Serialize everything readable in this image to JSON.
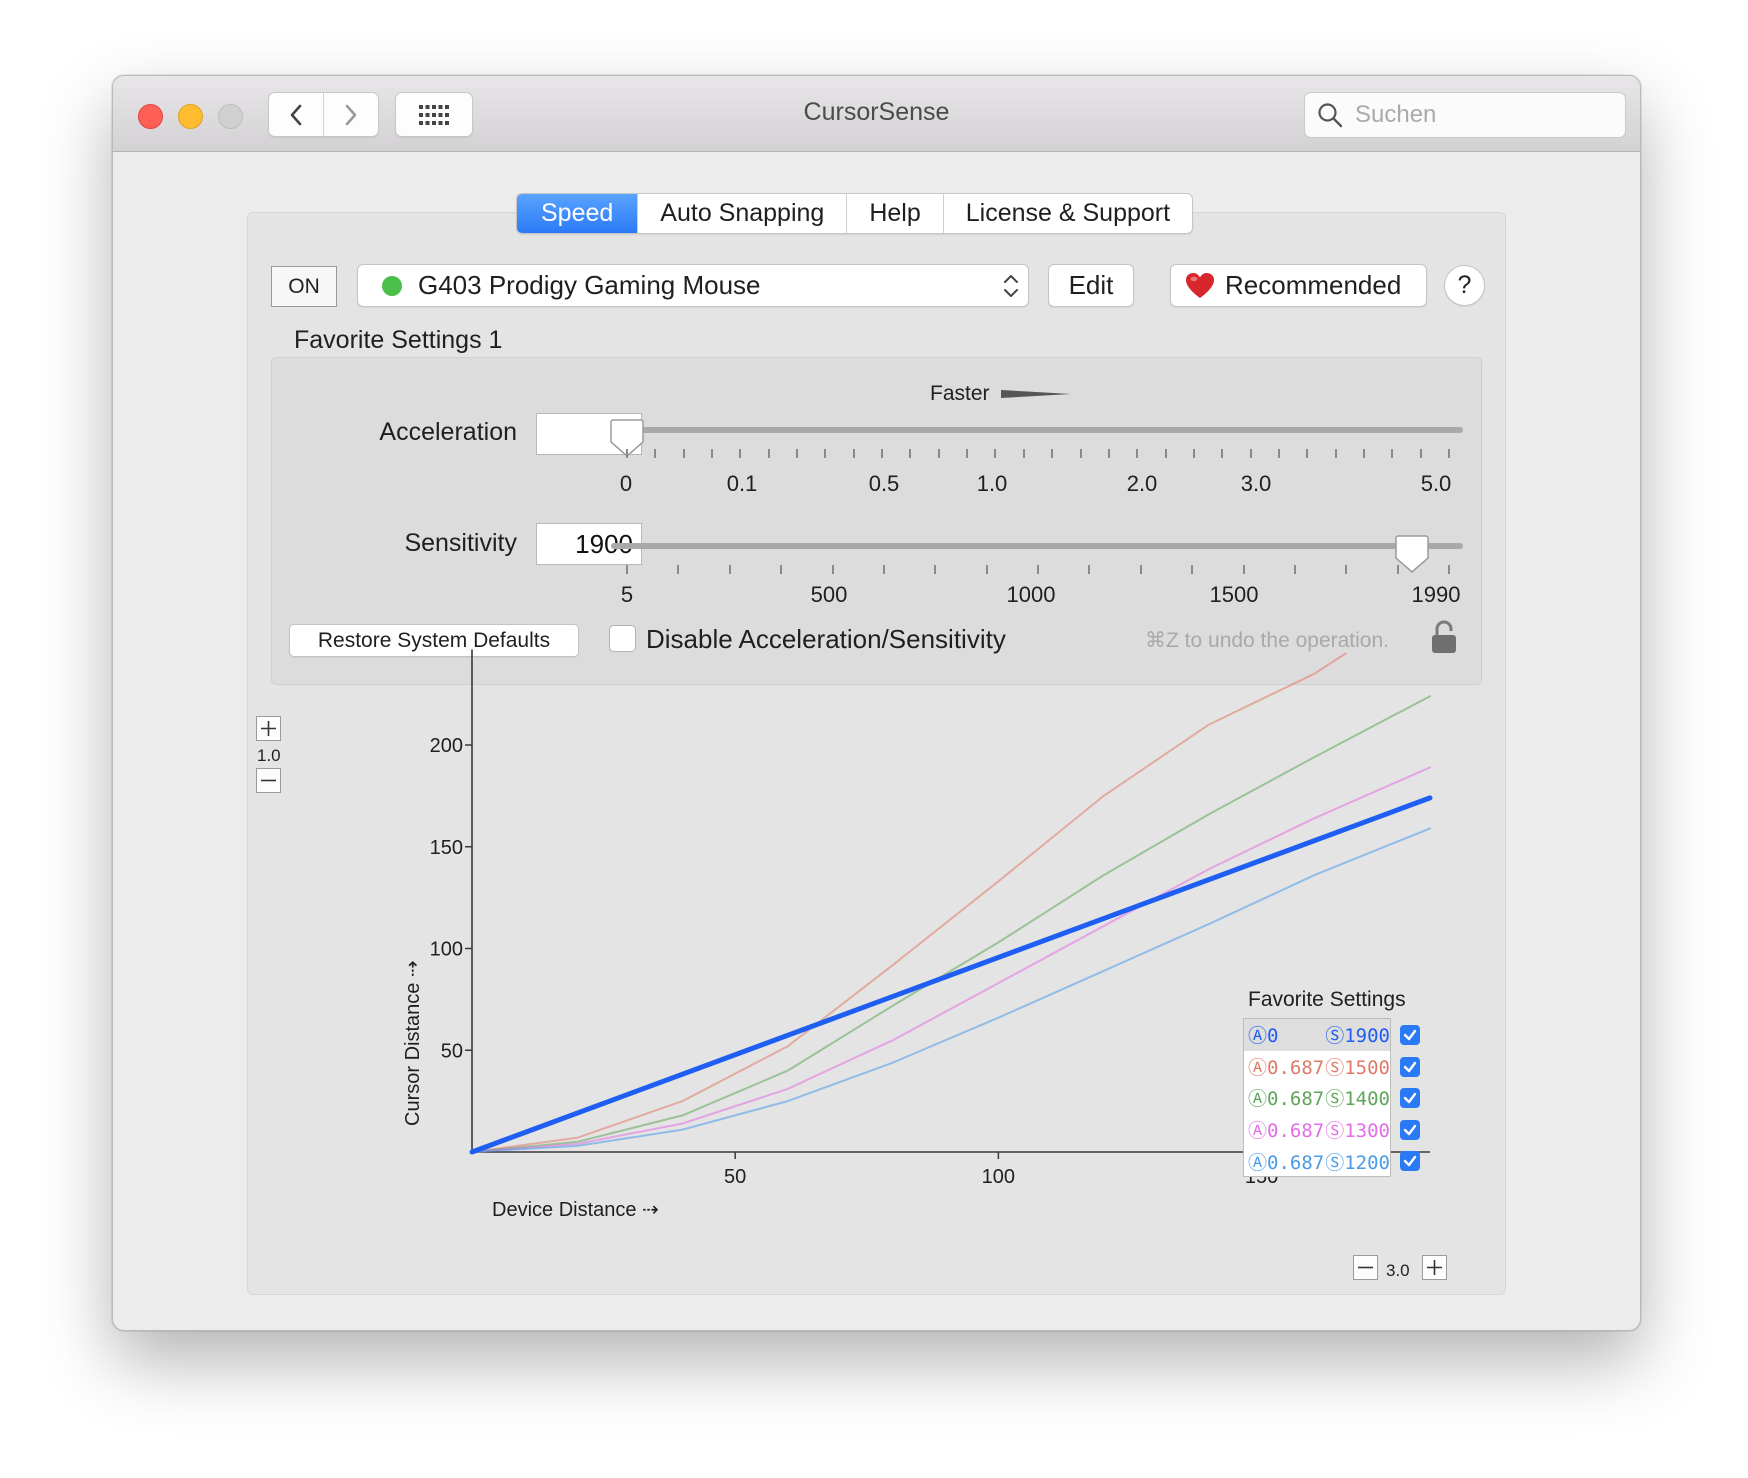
{
  "window": {
    "title": "CursorSense",
    "search_placeholder": "Suchen"
  },
  "tabs": [
    {
      "label": "Speed",
      "active": true
    },
    {
      "label": "Auto Snapping"
    },
    {
      "label": "Help"
    },
    {
      "label": "License & Support"
    }
  ],
  "toolbar": {
    "on_label": "ON",
    "device_name": "G403 Prodigy Gaming Mouse",
    "device_status_color": "#4cbf4b",
    "edit_label": "Edit",
    "recommended_label": "Recommended",
    "help_label": "?"
  },
  "favorite_title": "Favorite Settings 1",
  "acceleration": {
    "label": "Acceleration",
    "value": "0",
    "faster_label": "Faster",
    "tick_labels": [
      "0",
      "0.1",
      "0.5",
      "1.0",
      "2.0",
      "3.0",
      "5.0"
    ],
    "slider_fraction": 0.0
  },
  "sensitivity": {
    "label": "Sensitivity",
    "value": "1900",
    "tick_labels": [
      "5",
      "500",
      "1000",
      "1500",
      "1990"
    ],
    "slider_fraction": 0.955
  },
  "restore_label": "Restore System Defaults",
  "disable_label": "Disable Acceleration/Sensitivity",
  "undo_hint": "⌘Z to undo the operation.",
  "graph": {
    "y_zoom": "1.0",
    "x_zoom": "3.0",
    "xlabel": "Device Distance ⇢",
    "ylabel": "Cursor Distance ⇢",
    "legend_title": "Favorite Settings"
  },
  "chart_data": {
    "type": "line",
    "xlabel": "Device Distance ⇢",
    "ylabel": "Cursor Distance ⇢",
    "xlim": [
      0,
      182
    ],
    "ylim": [
      0,
      245
    ],
    "xticks": [
      50,
      100,
      150
    ],
    "yticks": [
      50,
      100,
      150,
      200
    ],
    "legend_title": "Favorite Settings",
    "series": [
      {
        "name_a": "Ⓐ0",
        "name_s": "Ⓢ1900",
        "color": "#1f5ef2",
        "width": 5,
        "checked": true,
        "x": [
          0,
          182
        ],
        "y": [
          0,
          174
        ]
      },
      {
        "name_a": "Ⓐ0.687",
        "name_s": "Ⓢ1500",
        "color": "#e07a68",
        "width": 2,
        "checked": true,
        "x": [
          0,
          20,
          40,
          60,
          80,
          100,
          120,
          140,
          160,
          166
        ],
        "y": [
          0,
          7,
          25,
          52,
          92,
          133,
          175,
          210,
          235,
          245
        ]
      },
      {
        "name_a": "Ⓐ0.687",
        "name_s": "Ⓢ1400",
        "color": "#5fa55a",
        "width": 2,
        "checked": true,
        "x": [
          0,
          20,
          40,
          60,
          80,
          100,
          120,
          140,
          160,
          182
        ],
        "y": [
          0,
          5,
          18,
          40,
          72,
          103,
          136,
          166,
          194,
          224
        ]
      },
      {
        "name_a": "Ⓐ0.687",
        "name_s": "Ⓢ1300",
        "color": "#e36ee6",
        "width": 2,
        "checked": true,
        "x": [
          0,
          20,
          40,
          60,
          80,
          100,
          120,
          140,
          160,
          182
        ],
        "y": [
          0,
          4,
          14,
          31,
          55,
          83,
          111,
          139,
          164,
          189
        ]
      },
      {
        "name_a": "Ⓐ0.687",
        "name_s": "Ⓢ1200",
        "color": "#4a9be8",
        "width": 2,
        "checked": true,
        "x": [
          0,
          20,
          40,
          60,
          80,
          100,
          120,
          140,
          160,
          182
        ],
        "y": [
          0,
          3,
          11,
          25,
          44,
          66,
          89,
          112,
          136,
          159
        ]
      }
    ]
  }
}
